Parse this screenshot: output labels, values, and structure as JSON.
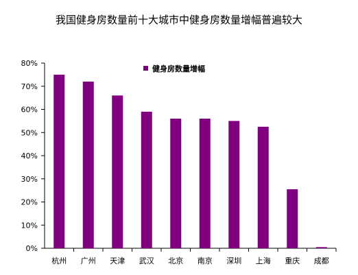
{
  "chart_data": {
    "type": "bar",
    "title": "我国健身房数量前十大城市中健身房数量增幅普遍较大",
    "categories": [
      "杭州",
      "广州",
      "天津",
      "武汉",
      "北京",
      "南京",
      "深圳",
      "上海",
      "重庆",
      "成都"
    ],
    "series": [
      {
        "name": "健身房数量增幅",
        "values": [
          75,
          72,
          66,
          59,
          56,
          56,
          55,
          52.5,
          25.5,
          0.5
        ]
      }
    ],
    "yticks": [
      "0%",
      "10%",
      "20%",
      "30%",
      "40%",
      "50%",
      "60%",
      "70%",
      "80%"
    ],
    "ylim": [
      0,
      80
    ],
    "grid": false,
    "legend_position": "top-center",
    "colors": {
      "bar": "#800080",
      "axis": "#000000"
    }
  }
}
